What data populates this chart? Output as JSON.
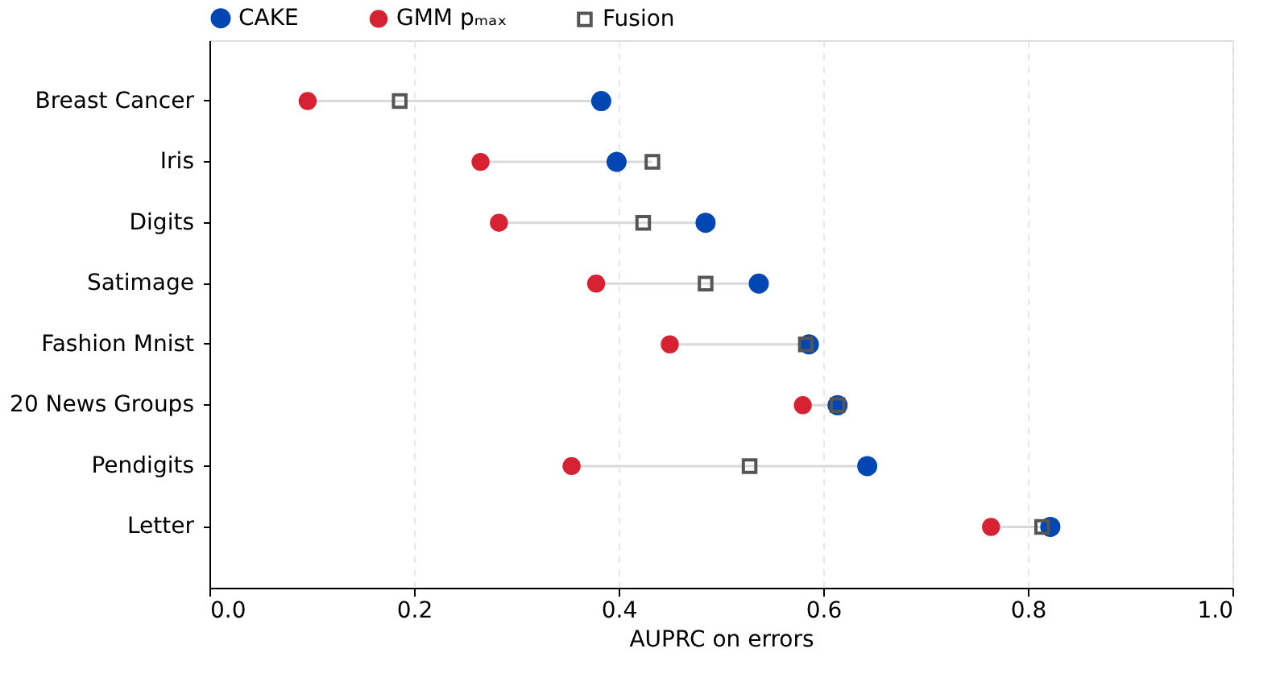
{
  "chart_data": {
    "type": "scatter",
    "xlabel": "AUPRC on errors",
    "categories": [
      "Breast Cancer",
      "Iris",
      "Digits",
      "Satimage",
      "Fashion Mnist",
      "20 News Groups",
      "Pendigits",
      "Letter"
    ],
    "orientation": "horizontal",
    "series": [
      {
        "name": "CAKE",
        "color": "#0047b3",
        "marker": "circle",
        "values": [
          0.383,
          0.398,
          0.485,
          0.537,
          0.586,
          0.614,
          0.643,
          0.822
        ]
      },
      {
        "name": "GMM pₘₐₓ",
        "color": "#d62232",
        "marker": "circle",
        "values": [
          0.096,
          0.265,
          0.283,
          0.378,
          0.45,
          0.58,
          0.354,
          0.764
        ]
      },
      {
        "name": "Fusion",
        "color": "#555555",
        "marker": "square",
        "values": [
          0.186,
          0.433,
          0.424,
          0.485,
          0.583,
          0.614,
          0.528,
          0.814
        ]
      }
    ],
    "xlim": [
      0.0,
      1.0
    ],
    "xticks": [
      {
        "value": 0,
        "label": "0.0"
      },
      0.2,
      0.4,
      0.6,
      0.8,
      {
        "value": 1,
        "label": "1.0"
      }
    ],
    "grid": "x",
    "legend": "top"
  }
}
